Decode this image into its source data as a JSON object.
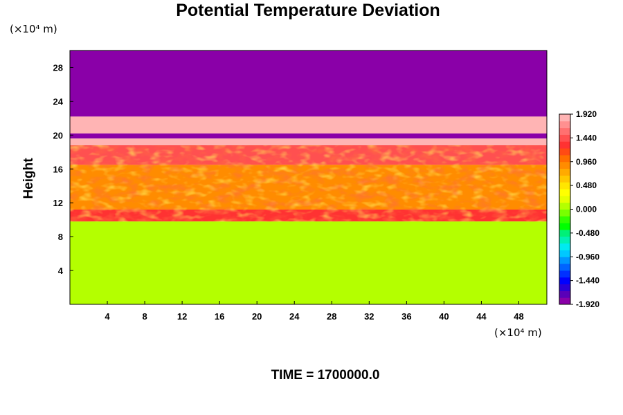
{
  "chart_data": {
    "type": "heatmap",
    "title": "Potential Temperature Deviation",
    "ylabel": "Height",
    "y_unit": "(×10⁴ m)",
    "x_unit": "(×10⁴ m)",
    "footer": "TIME = 1700000.0",
    "xlim": [
      0,
      51
    ],
    "ylim": [
      0,
      30
    ],
    "x_ticks": [
      4,
      8,
      12,
      16,
      20,
      24,
      28,
      32,
      36,
      40,
      44,
      48
    ],
    "y_ticks": [
      4,
      8,
      12,
      16,
      20,
      24,
      28
    ],
    "colorbar": {
      "min": -1.92,
      "max": 1.92,
      "tick_labels": [
        "1.920",
        "1.440",
        "0.960",
        "0.480",
        "0.000",
        "-0.480",
        "-0.960",
        "-1.440",
        "-1.920"
      ],
      "colors": [
        "#8a00a8",
        "#5a00b8",
        "#2a00d8",
        "#0000ff",
        "#0030ff",
        "#0064ff",
        "#0096ff",
        "#00c8ff",
        "#00eaf0",
        "#00f0b4",
        "#00f078",
        "#00ff00",
        "#32ff00",
        "#78ff00",
        "#b4ff00",
        "#e6ff00",
        "#ffff00",
        "#ffe600",
        "#ffc800",
        "#ffaa00",
        "#ff8c00",
        "#ff6e00",
        "#ff4a14",
        "#ff3232",
        "#ff5050",
        "#ff7070",
        "#ff9090",
        "#ffb4b4"
      ]
    },
    "layers": [
      {
        "y_from": 0,
        "y_to": 9.8,
        "value": 0.0
      },
      {
        "y_from": 9.8,
        "y_to": 11.2,
        "value": 1.3
      },
      {
        "y_from": 11.2,
        "y_to": 16.5,
        "value": 0.9
      },
      {
        "y_from": 16.5,
        "y_to": 18.8,
        "value": 1.5
      },
      {
        "y_from": 18.8,
        "y_to": 19.6,
        "value": 1.92
      },
      {
        "y_from": 19.6,
        "y_to": 20.2,
        "value": -1.92
      },
      {
        "y_from": 20.2,
        "y_to": 22.2,
        "value": 1.92
      },
      {
        "y_from": 22.2,
        "y_to": 30,
        "value": -1.92
      }
    ],
    "grid": false
  }
}
